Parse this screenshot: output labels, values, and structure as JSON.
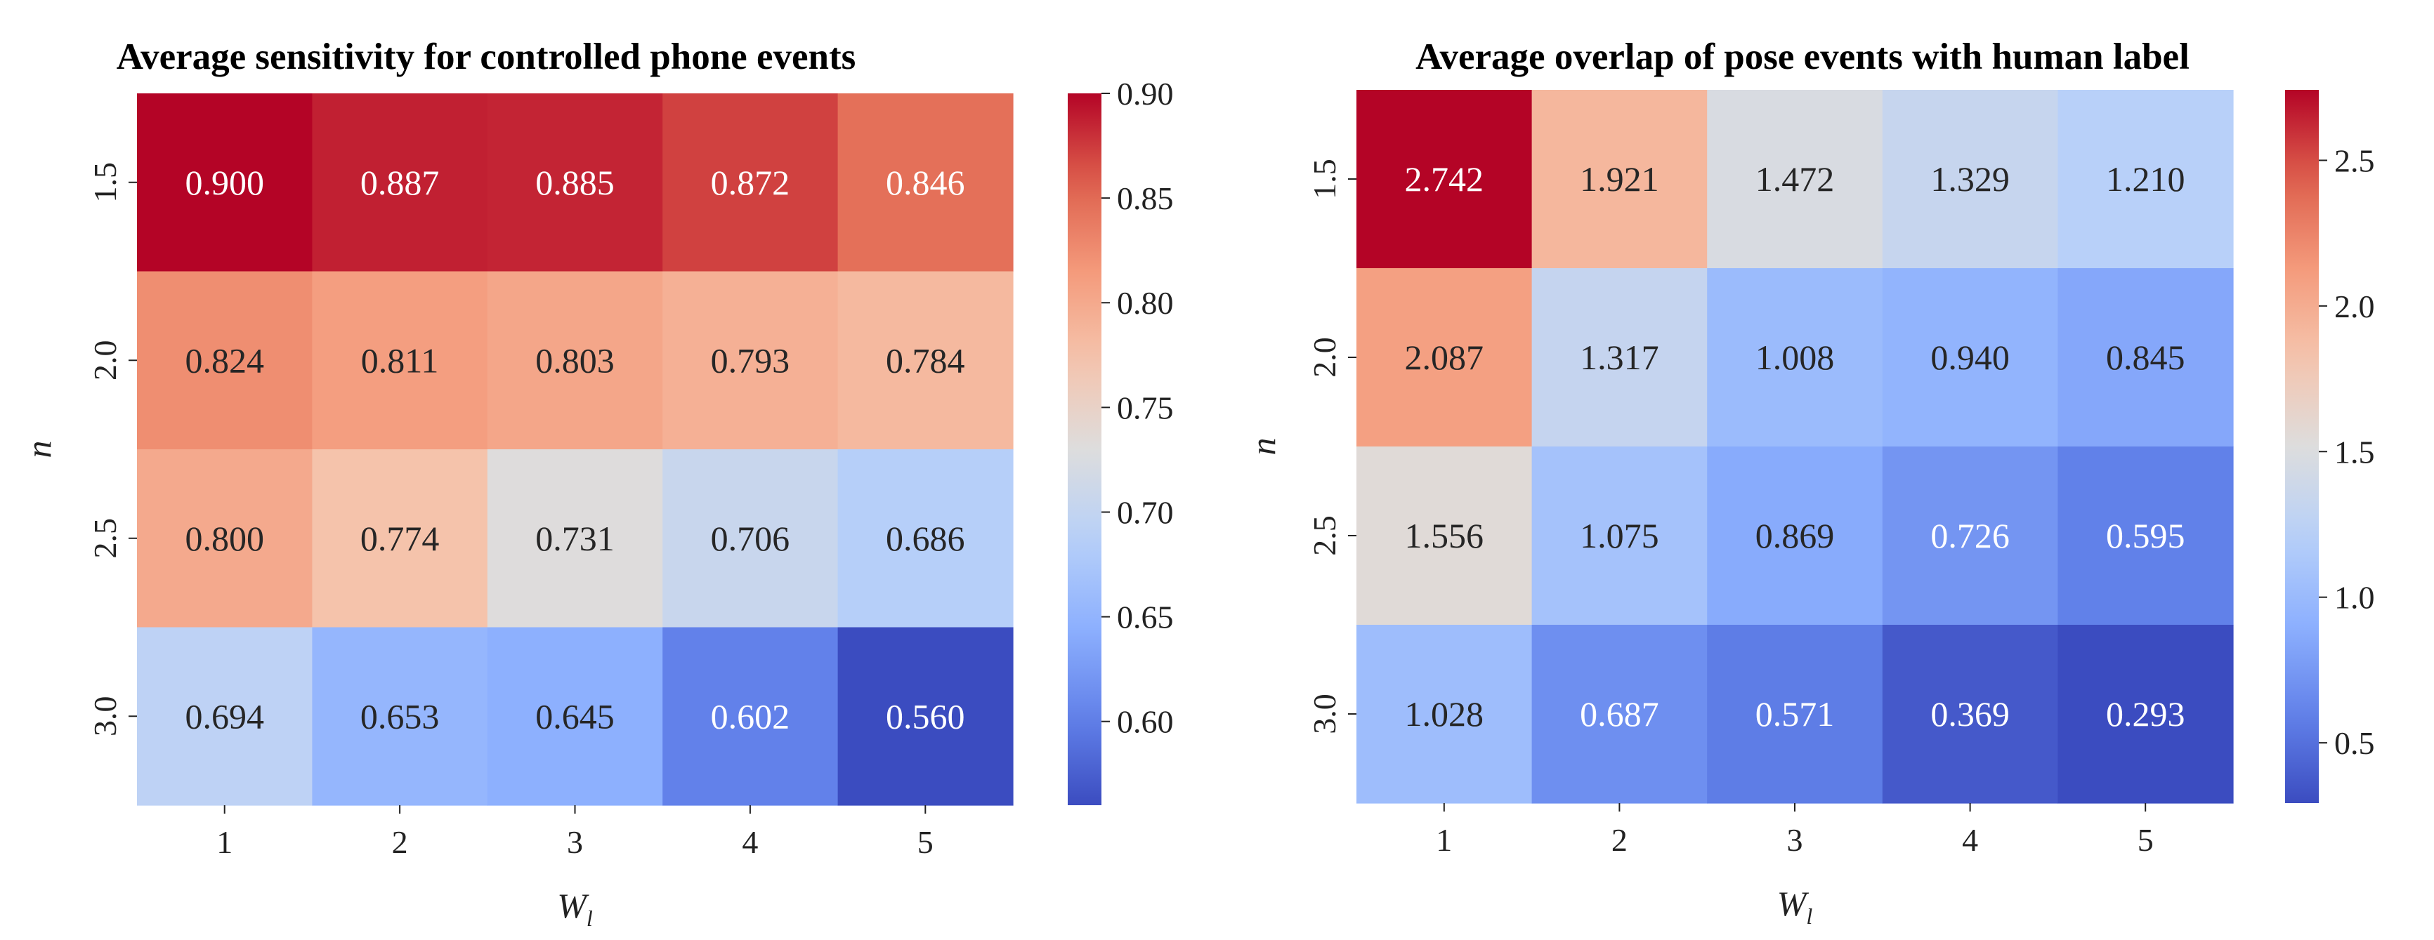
{
  "chart_data": [
    {
      "type": "heatmap",
      "title": "Average sensitivity for controlled phone events",
      "xlabel": "W",
      "xlabel_sub": "l",
      "ylabel": "n",
      "x": [
        "1",
        "2",
        "3",
        "4",
        "5"
      ],
      "y": [
        "1.5",
        "2.0",
        "2.5",
        "3.0"
      ],
      "values": [
        [
          0.9,
          0.887,
          0.885,
          0.872,
          0.846
        ],
        [
          0.824,
          0.811,
          0.803,
          0.793,
          0.784
        ],
        [
          0.8,
          0.774,
          0.731,
          0.706,
          0.686
        ],
        [
          0.694,
          0.653,
          0.645,
          0.602,
          0.56
        ]
      ],
      "labels": [
        [
          "0.900",
          "0.887",
          "0.885",
          "0.872",
          "0.846"
        ],
        [
          "0.824",
          "0.811",
          "0.803",
          "0.793",
          "0.784"
        ],
        [
          "0.800",
          "0.774",
          "0.731",
          "0.706",
          "0.686"
        ],
        [
          "0.694",
          "0.653",
          "0.645",
          "0.602",
          "0.560"
        ]
      ],
      "colormap": "coolwarm",
      "vmin": 0.56,
      "vmax": 0.9,
      "colorbar_ticks": [
        0.6,
        0.65,
        0.7,
        0.75,
        0.8,
        0.85,
        0.9
      ],
      "colorbar_tick_labels": [
        "0.60",
        "0.65",
        "0.70",
        "0.75",
        "0.80",
        "0.85",
        "0.90"
      ]
    },
    {
      "type": "heatmap",
      "title": "Average overlap of pose events with human label",
      "xlabel": "W",
      "xlabel_sub": "l",
      "ylabel": "n",
      "x": [
        "1",
        "2",
        "3",
        "4",
        "5"
      ],
      "y": [
        "1.5",
        "2.0",
        "2.5",
        "3.0"
      ],
      "values": [
        [
          2.742,
          1.921,
          1.472,
          1.329,
          1.21
        ],
        [
          2.087,
          1.317,
          1.008,
          0.94,
          0.845
        ],
        [
          1.556,
          1.075,
          0.869,
          0.726,
          0.595
        ],
        [
          1.028,
          0.687,
          0.571,
          0.369,
          0.293
        ]
      ],
      "labels": [
        [
          "2.742",
          "1.921",
          "1.472",
          "1.329",
          "1.210"
        ],
        [
          "2.087",
          "1.317",
          "1.008",
          "0.940",
          "0.845"
        ],
        [
          "1.556",
          "1.075",
          "0.869",
          "0.726",
          "0.595"
        ],
        [
          "1.028",
          "0.687",
          "0.571",
          "0.369",
          "0.293"
        ]
      ],
      "colormap": "coolwarm",
      "vmin": 0.293,
      "vmax": 2.742,
      "colorbar_ticks": [
        0.5,
        1.0,
        1.5,
        2.0,
        2.5
      ],
      "colorbar_tick_labels": [
        "0.5",
        "1.0",
        "1.5",
        "2.0",
        "2.5"
      ]
    }
  ]
}
